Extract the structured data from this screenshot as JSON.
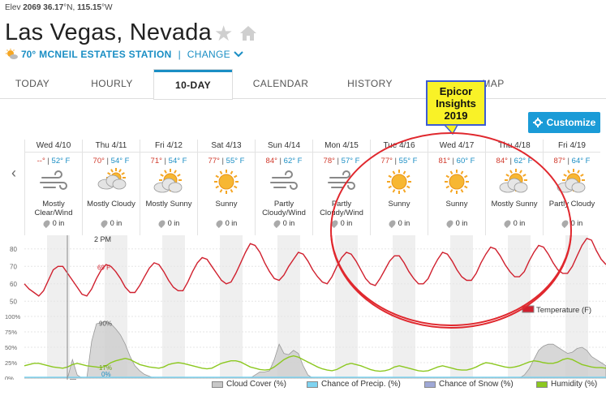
{
  "header": {
    "elev_prefix": "Elev",
    "elev_value": "2069",
    "lat": "36.17",
    "lat_unit": "°N,",
    "lon": "115.15",
    "lon_unit": "°W",
    "city": "Las Vegas, Nevada",
    "station_temp": "70°",
    "station_name": "MCNEIL ESTATES STATION",
    "station_sep": "|",
    "change_label": "CHANGE"
  },
  "tabs": [
    {
      "label": "TODAY"
    },
    {
      "label": "HOURLY"
    },
    {
      "label": "10-DAY"
    },
    {
      "label": "CALENDAR"
    },
    {
      "label": "HISTORY"
    },
    {
      "label": "MAP"
    }
  ],
  "customize_label": "Customize",
  "callout": {
    "line1": "Epicor",
    "line2": "Insights",
    "line3": "2019"
  },
  "days": [
    {
      "date": "Wed 4/10",
      "hi": "--°",
      "lo": "52° F",
      "cond": "Mostly Clear/Wind",
      "icon": "wind-icon",
      "precip": "0 in"
    },
    {
      "date": "Thu 4/11",
      "hi": "70°",
      "lo": "54° F",
      "cond": "Mostly Cloudy",
      "icon": "cloud-sun-icon",
      "precip": "0 in"
    },
    {
      "date": "Fri 4/12",
      "hi": "71°",
      "lo": "54° F",
      "cond": "Mostly Sunny",
      "icon": "sun-cloud-icon",
      "precip": "0 in"
    },
    {
      "date": "Sat 4/13",
      "hi": "77°",
      "lo": "55° F",
      "cond": "Sunny",
      "icon": "sun-icon",
      "precip": "0 in"
    },
    {
      "date": "Sun 4/14",
      "hi": "84°",
      "lo": "62° F",
      "cond": "Partly Cloudy/Wind",
      "icon": "wind-icon",
      "precip": "0 in"
    },
    {
      "date": "Mon 4/15",
      "hi": "78°",
      "lo": "57° F",
      "cond": "Partly Cloudy/Wind",
      "icon": "wind-icon",
      "precip": "0 in"
    },
    {
      "date": "Tue 4/16",
      "hi": "77°",
      "lo": "55° F",
      "cond": "Sunny",
      "icon": "sun-icon",
      "precip": "0 in"
    },
    {
      "date": "Wed 4/17",
      "hi": "81°",
      "lo": "60° F",
      "cond": "Sunny",
      "icon": "sun-icon",
      "precip": "0 in"
    },
    {
      "date": "Thu 4/18",
      "hi": "84°",
      "lo": "62° F",
      "cond": "Mostly Sunny",
      "icon": "sun-cloud-icon",
      "precip": "0 in"
    },
    {
      "date": "Fri 4/19",
      "hi": "87°",
      "lo": "64° F",
      "cond": "Partly Cloudy",
      "icon": "sun-cloud-icon",
      "precip": "0 in"
    }
  ],
  "chart_data": {
    "type": "line",
    "temperature": {
      "yticks": [
        "80",
        "70",
        "60",
        "50"
      ],
      "ylim": [
        45,
        85
      ],
      "cursor_time": "2 PM",
      "cursor_value": "69 F",
      "series": [
        {
          "name": "Temperature (F)",
          "color": "#d0202e"
        }
      ],
      "values": [
        60,
        57,
        55,
        53,
        56,
        62,
        68,
        70,
        70,
        66,
        62,
        58,
        54,
        53,
        57,
        63,
        68,
        71,
        70,
        67,
        63,
        58,
        55,
        55,
        59,
        64,
        69,
        72,
        71,
        67,
        62,
        58,
        56,
        56,
        61,
        67,
        72,
        75,
        74,
        70,
        66,
        62,
        60,
        61,
        66,
        72,
        78,
        83,
        82,
        78,
        72,
        67,
        63,
        62,
        65,
        70,
        74,
        78,
        77,
        73,
        68,
        64,
        61,
        60,
        64,
        70,
        75,
        78,
        77,
        73,
        68,
        63,
        60,
        59,
        63,
        68,
        73,
        76,
        76,
        72,
        67,
        63,
        60,
        60,
        63,
        69,
        74,
        78,
        77,
        73,
        68,
        64,
        62,
        62,
        66,
        72,
        77,
        81,
        80,
        76,
        71,
        67,
        64,
        64,
        67,
        73,
        78,
        82,
        81,
        77,
        72,
        68,
        66,
        66,
        70,
        76,
        82,
        86,
        85,
        79,
        74,
        71
      ]
    },
    "lower": {
      "yticks": [
        "100%",
        "75%",
        "50%",
        "25%",
        "0%"
      ],
      "ylim": [
        0,
        100
      ],
      "cursor_cloud": "90%",
      "cursor_humidity": "17%",
      "cursor_precip": "0%",
      "series": [
        {
          "name": "Cloud Cover (%)",
          "color": "#c8c8c8"
        },
        {
          "name": "Chance of Precip. (%)",
          "color": "#7fd3f0"
        },
        {
          "name": "Chance of Snow (%)",
          "color": "#9fa8d6"
        },
        {
          "name": "Humidity (%)",
          "color": "#8cc820"
        }
      ],
      "cloud": [
        0,
        0,
        0,
        0,
        0,
        0,
        0,
        0,
        0,
        0,
        30,
        5,
        0,
        0,
        60,
        88,
        90,
        92,
        88,
        80,
        70,
        55,
        35,
        20,
        12,
        6,
        3,
        0,
        0,
        0,
        0,
        0,
        0,
        0,
        0,
        0,
        0,
        0,
        0,
        0,
        0,
        0,
        0,
        0,
        0,
        0,
        0,
        0,
        5,
        10,
        10,
        12,
        30,
        55,
        40,
        38,
        45,
        40,
        20,
        5,
        0,
        0,
        0,
        0,
        0,
        0,
        0,
        0,
        0,
        0,
        0,
        0,
        0,
        0,
        0,
        0,
        0,
        0,
        0,
        0,
        0,
        0,
        0,
        0,
        0,
        0,
        0,
        0,
        0,
        0,
        0,
        0,
        0,
        0,
        0,
        0,
        0,
        0,
        0,
        0,
        0,
        0,
        0,
        0,
        5,
        15,
        30,
        45,
        52,
        55,
        55,
        50,
        45,
        40,
        42,
        48,
        50,
        45,
        35,
        30,
        25,
        20
      ],
      "humidity": [
        20,
        22,
        24,
        24,
        22,
        20,
        18,
        17,
        16,
        18,
        22,
        24,
        22,
        20,
        19,
        18,
        17,
        20,
        25,
        28,
        30,
        32,
        30,
        26,
        22,
        20,
        18,
        17,
        16,
        18,
        22,
        24,
        25,
        24,
        22,
        20,
        18,
        16,
        15,
        16,
        20,
        24,
        26,
        28,
        28,
        26,
        22,
        18,
        16,
        14,
        13,
        14,
        18,
        24,
        30,
        34,
        36,
        34,
        30,
        26,
        22,
        18,
        15,
        13,
        12,
        14,
        18,
        22,
        24,
        22,
        20,
        17,
        14,
        12,
        11,
        12,
        14,
        18,
        20,
        18,
        16,
        14,
        12,
        11,
        12,
        15,
        18,
        20,
        18,
        16,
        14,
        13,
        13,
        15,
        18,
        22,
        25,
        24,
        22,
        20,
        18,
        17,
        18,
        20,
        23,
        26,
        28,
        27,
        25,
        24,
        24,
        26,
        30,
        32,
        30,
        26,
        22,
        20,
        18,
        17,
        17,
        16
      ]
    }
  }
}
